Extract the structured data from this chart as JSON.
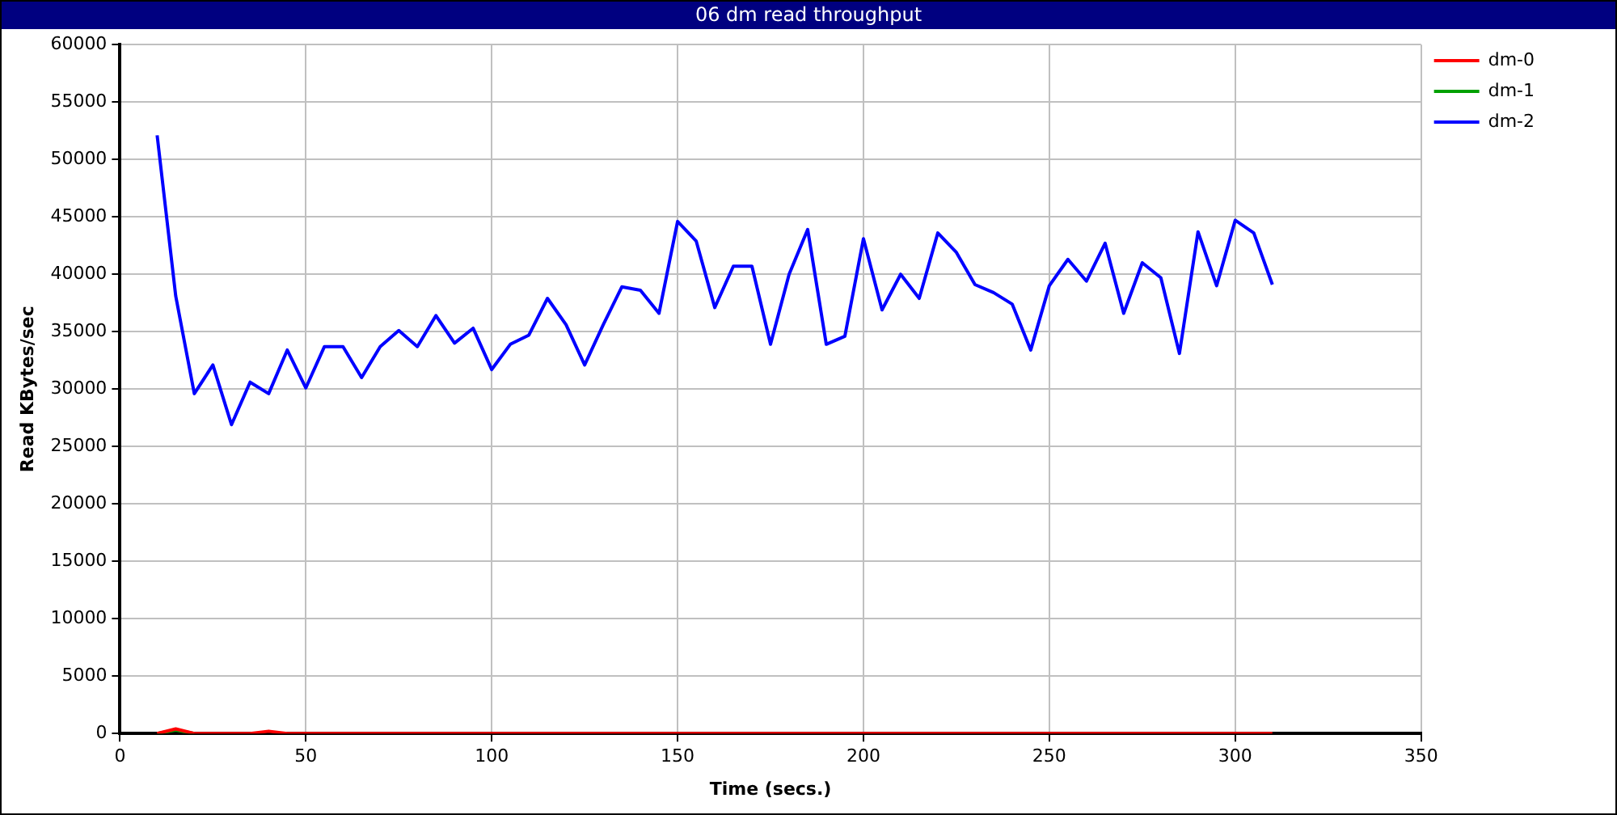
{
  "chart_data": {
    "type": "line",
    "title": "06 dm read throughput",
    "xlabel": "Time (secs.)",
    "ylabel": "Read KBytes/sec",
    "x": [
      10,
      15,
      20,
      25,
      30,
      35,
      40,
      45,
      50,
      55,
      60,
      65,
      70,
      75,
      80,
      85,
      90,
      95,
      100,
      105,
      110,
      115,
      120,
      125,
      130,
      135,
      140,
      145,
      150,
      155,
      160,
      165,
      170,
      175,
      180,
      185,
      190,
      195,
      200,
      205,
      210,
      215,
      220,
      225,
      230,
      235,
      240,
      245,
      250,
      255,
      260,
      265,
      270,
      275,
      280,
      285,
      290,
      295,
      300,
      305,
      310
    ],
    "series": [
      {
        "name": "dm-0",
        "color": "#ff0000",
        "values": [
          0,
          400,
          0,
          0,
          0,
          0,
          200,
          0,
          0,
          0,
          0,
          0,
          0,
          0,
          0,
          0,
          0,
          0,
          0,
          0,
          0,
          0,
          0,
          0,
          0,
          0,
          0,
          0,
          0,
          0,
          0,
          0,
          0,
          0,
          0,
          0,
          0,
          0,
          0,
          0,
          0,
          0,
          0,
          0,
          0,
          0,
          0,
          0,
          0,
          0,
          0,
          0,
          0,
          0,
          0,
          0,
          0,
          0,
          0,
          0,
          0
        ]
      },
      {
        "name": "dm-1",
        "color": "#00a000",
        "values": [
          0,
          300,
          0,
          null,
          null,
          null,
          null,
          null,
          null,
          null,
          null,
          null,
          null,
          null,
          null,
          null,
          null,
          null,
          null,
          null,
          null,
          null,
          null,
          null,
          null,
          null,
          null,
          null,
          null,
          null,
          null,
          null,
          null,
          null,
          null,
          null,
          null,
          null,
          null,
          null,
          null,
          null,
          null,
          null,
          null,
          null,
          null,
          null,
          null,
          null,
          null,
          null,
          null,
          null,
          null,
          null,
          null,
          null,
          null,
          null,
          null
        ]
      },
      {
        "name": "dm-2",
        "color": "#0000ff",
        "values": [
          52100,
          38100,
          29600,
          32100,
          26900,
          30600,
          29600,
          33400,
          30100,
          33700,
          33700,
          31000,
          33700,
          35100,
          33700,
          36400,
          34000,
          35300,
          31700,
          33900,
          34700,
          37900,
          35600,
          32100,
          35600,
          38900,
          38600,
          36600,
          44600,
          42900,
          37100,
          40700,
          40700,
          33900,
          40000,
          43900,
          33900,
          34600,
          43100,
          36900,
          40000,
          37900,
          43600,
          41900,
          39100,
          38400,
          37400,
          33400,
          39000,
          41300,
          39400,
          42700,
          36600,
          41000,
          39700,
          33100,
          43700,
          39000,
          44700,
          43600,
          39100
        ]
      }
    ],
    "xlim": [
      0,
      350
    ],
    "xticks": [
      0,
      50,
      100,
      150,
      200,
      250,
      300,
      350
    ],
    "ylim": [
      0,
      60000
    ],
    "yticks": [
      0,
      5000,
      10000,
      15000,
      20000,
      25000,
      30000,
      35000,
      40000,
      45000,
      50000,
      55000,
      60000
    ],
    "grid": true,
    "legend": "top right",
    "marker": "none",
    "line_style": "solid"
  }
}
